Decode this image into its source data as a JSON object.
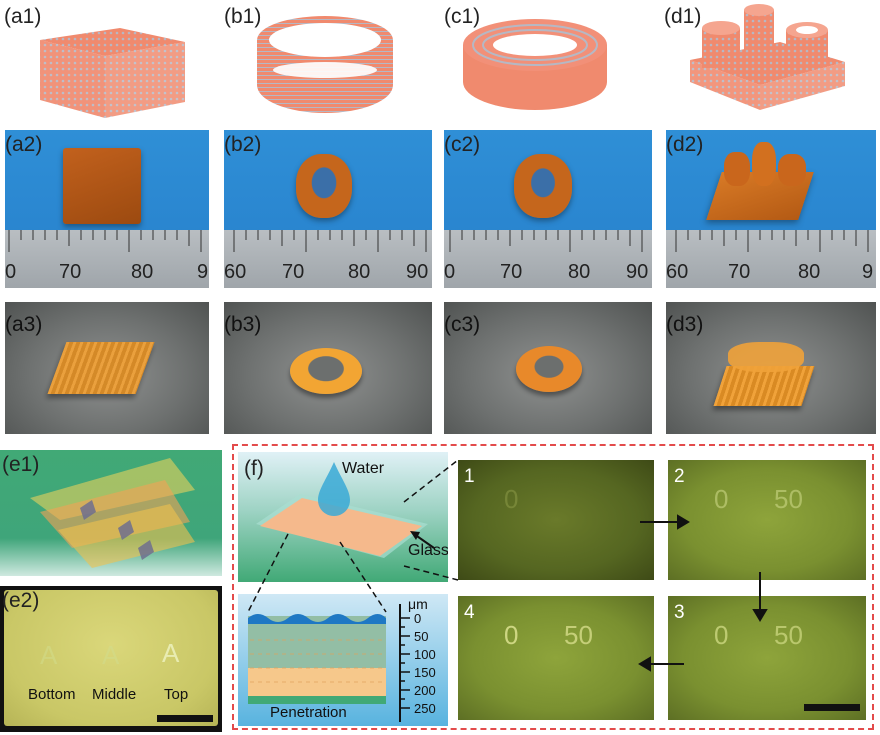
{
  "row1": {
    "labels": [
      "(a1)",
      "(b1)",
      "(c1)",
      "(d1)"
    ]
  },
  "row2": {
    "labels": [
      "(a2)",
      "(b2)",
      "(c2)",
      "(d2)"
    ],
    "ruler_a": [
      "0",
      "70",
      "80",
      "9"
    ],
    "ruler_b": [
      "60",
      "70",
      "80",
      "90"
    ],
    "ruler_c": [
      "0",
      "70",
      "80",
      "90"
    ],
    "ruler_d": [
      "60",
      "70",
      "80",
      "9"
    ]
  },
  "row3": {
    "labels": [
      "(a3)",
      "(b3)",
      "(c3)",
      "(d3)"
    ]
  },
  "panel_e": {
    "e1_label": "(e1)",
    "e2_label": "(e2)",
    "letters": [
      "A",
      "A",
      "A"
    ],
    "captions": [
      "Bottom",
      "Middle",
      "Top"
    ]
  },
  "panel_f": {
    "label": "(f)",
    "water": "Water",
    "glass": "Glass",
    "penetration": "Penetration",
    "unit": "μm",
    "ticks": [
      "0",
      "50",
      "100",
      "150",
      "200",
      "250"
    ],
    "step_numbers": [
      "1",
      "2",
      "3",
      "4"
    ],
    "marks": [
      "0",
      "50"
    ]
  },
  "colors": {
    "salmon": "#f08a6e",
    "dashed_border": "#e34b4b",
    "photo_blue": "#2f8fd6",
    "teal": "#41a976"
  }
}
